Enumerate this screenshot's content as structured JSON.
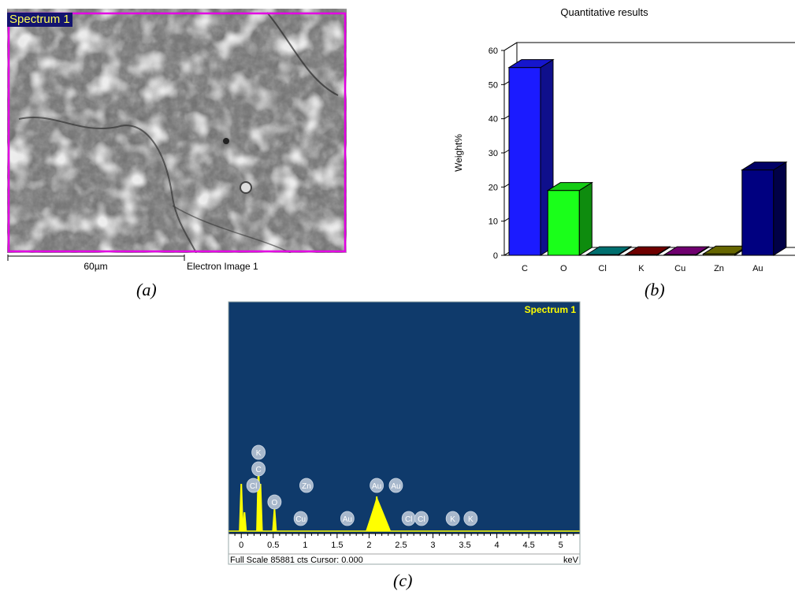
{
  "panel_a": {
    "spectrum_label": "Spectrum 1",
    "scale_label": "60µm",
    "image_label": "Electron Image 1",
    "caption": "(a)"
  },
  "panel_b": {
    "caption": "(b)"
  },
  "panel_c": {
    "spectrum_label": "Spectrum 1",
    "footer_left": "Full Scale 85881 cts Cursor: 0.000",
    "footer_right": "keV",
    "caption": "(c)"
  },
  "chart_data": [
    {
      "type": "bar",
      "title": "Quantitative results",
      "xlabel": "",
      "ylabel": "Weight%",
      "categories": [
        "C",
        "O",
        "Cl",
        "K",
        "Cu",
        "Zn",
        "Au"
      ],
      "values": [
        55,
        19,
        0.2,
        0.2,
        0.2,
        0.4,
        25
      ],
      "ylim": [
        0,
        60
      ],
      "yticks": [
        0,
        10,
        20,
        30,
        40,
        50,
        60
      ],
      "colors": [
        "#1b1bff",
        "#1aff1a",
        "#008b8b",
        "#8b0000",
        "#8b008b",
        "#808000",
        "#000080"
      ],
      "style": "3d"
    },
    {
      "type": "line",
      "title": "",
      "xlabel": "keV",
      "ylabel": "",
      "xlim": [
        -0.2,
        5.3
      ],
      "xticks": [
        0,
        0.5,
        1,
        1.5,
        2,
        2.5,
        3,
        3.5,
        4,
        4.5,
        5
      ],
      "xticklabels": [
        "0",
        "0.5",
        "1",
        "1.5",
        "2",
        "2.5",
        "3",
        "3.5",
        "4",
        "4.5",
        "5"
      ],
      "background_color": "#0f3a6b",
      "line_color": "#ffff00",
      "peaks": [
        {
          "x": 0.0,
          "height": 0.3
        },
        {
          "x": 0.05,
          "height": 0.12
        },
        {
          "x": 0.27,
          "height": 0.42
        },
        {
          "x": 0.3,
          "height": 0.3
        },
        {
          "x": 0.52,
          "height": 0.14
        },
        {
          "x": 2.12,
          "height": 0.22
        },
        {
          "x": 2.2,
          "height": 0.12
        }
      ],
      "element_markers": [
        {
          "label": "K",
          "x": 0.27,
          "level": 5
        },
        {
          "label": "C",
          "x": 0.27,
          "level": 4
        },
        {
          "label": "Cl",
          "x": 0.19,
          "level": 3
        },
        {
          "label": "O",
          "x": 0.52,
          "level": 2
        },
        {
          "label": "Zn",
          "x": 1.02,
          "level": 3
        },
        {
          "label": "Cu",
          "x": 0.93,
          "level": 1
        },
        {
          "label": "Au",
          "x": 1.66,
          "level": 1
        },
        {
          "label": "Au",
          "x": 2.12,
          "level": 3
        },
        {
          "label": "Au",
          "x": 2.42,
          "level": 3
        },
        {
          "label": "Cl",
          "x": 2.62,
          "level": 1
        },
        {
          "label": "Cl",
          "x": 2.82,
          "level": 1
        },
        {
          "label": "K",
          "x": 3.31,
          "level": 1
        },
        {
          "label": "K",
          "x": 3.59,
          "level": 1
        }
      ]
    }
  ]
}
